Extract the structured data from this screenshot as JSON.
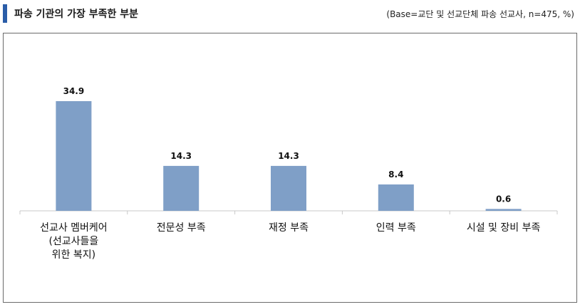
{
  "header": {
    "title": "파송 기관의 가장 부족한 부분",
    "note": "(Base=교단 및 선교단체 파송 선교사, n=475, %)"
  },
  "colors": {
    "accent": "#2a5da8",
    "bar": "#7f9fc7"
  },
  "chart_data": {
    "type": "bar",
    "title": "파송 기관의 가장 부족한 부분",
    "categories": [
      [
        "선교사 멤버케어",
        "(선교사들을",
        "위한 복지)"
      ],
      [
        "전문성 부족"
      ],
      [
        "재정 부족"
      ],
      [
        "인력 부족"
      ],
      [
        "시설 및 장비 부족"
      ]
    ],
    "values": [
      34.9,
      14.3,
      14.3,
      8.4,
      0.6
    ],
    "value_labels": [
      "34.9",
      "14.3",
      "14.3",
      "8.4",
      "0.6"
    ],
    "xlabel": "",
    "ylabel": "",
    "ylim": [
      0,
      40
    ],
    "grid": false
  }
}
